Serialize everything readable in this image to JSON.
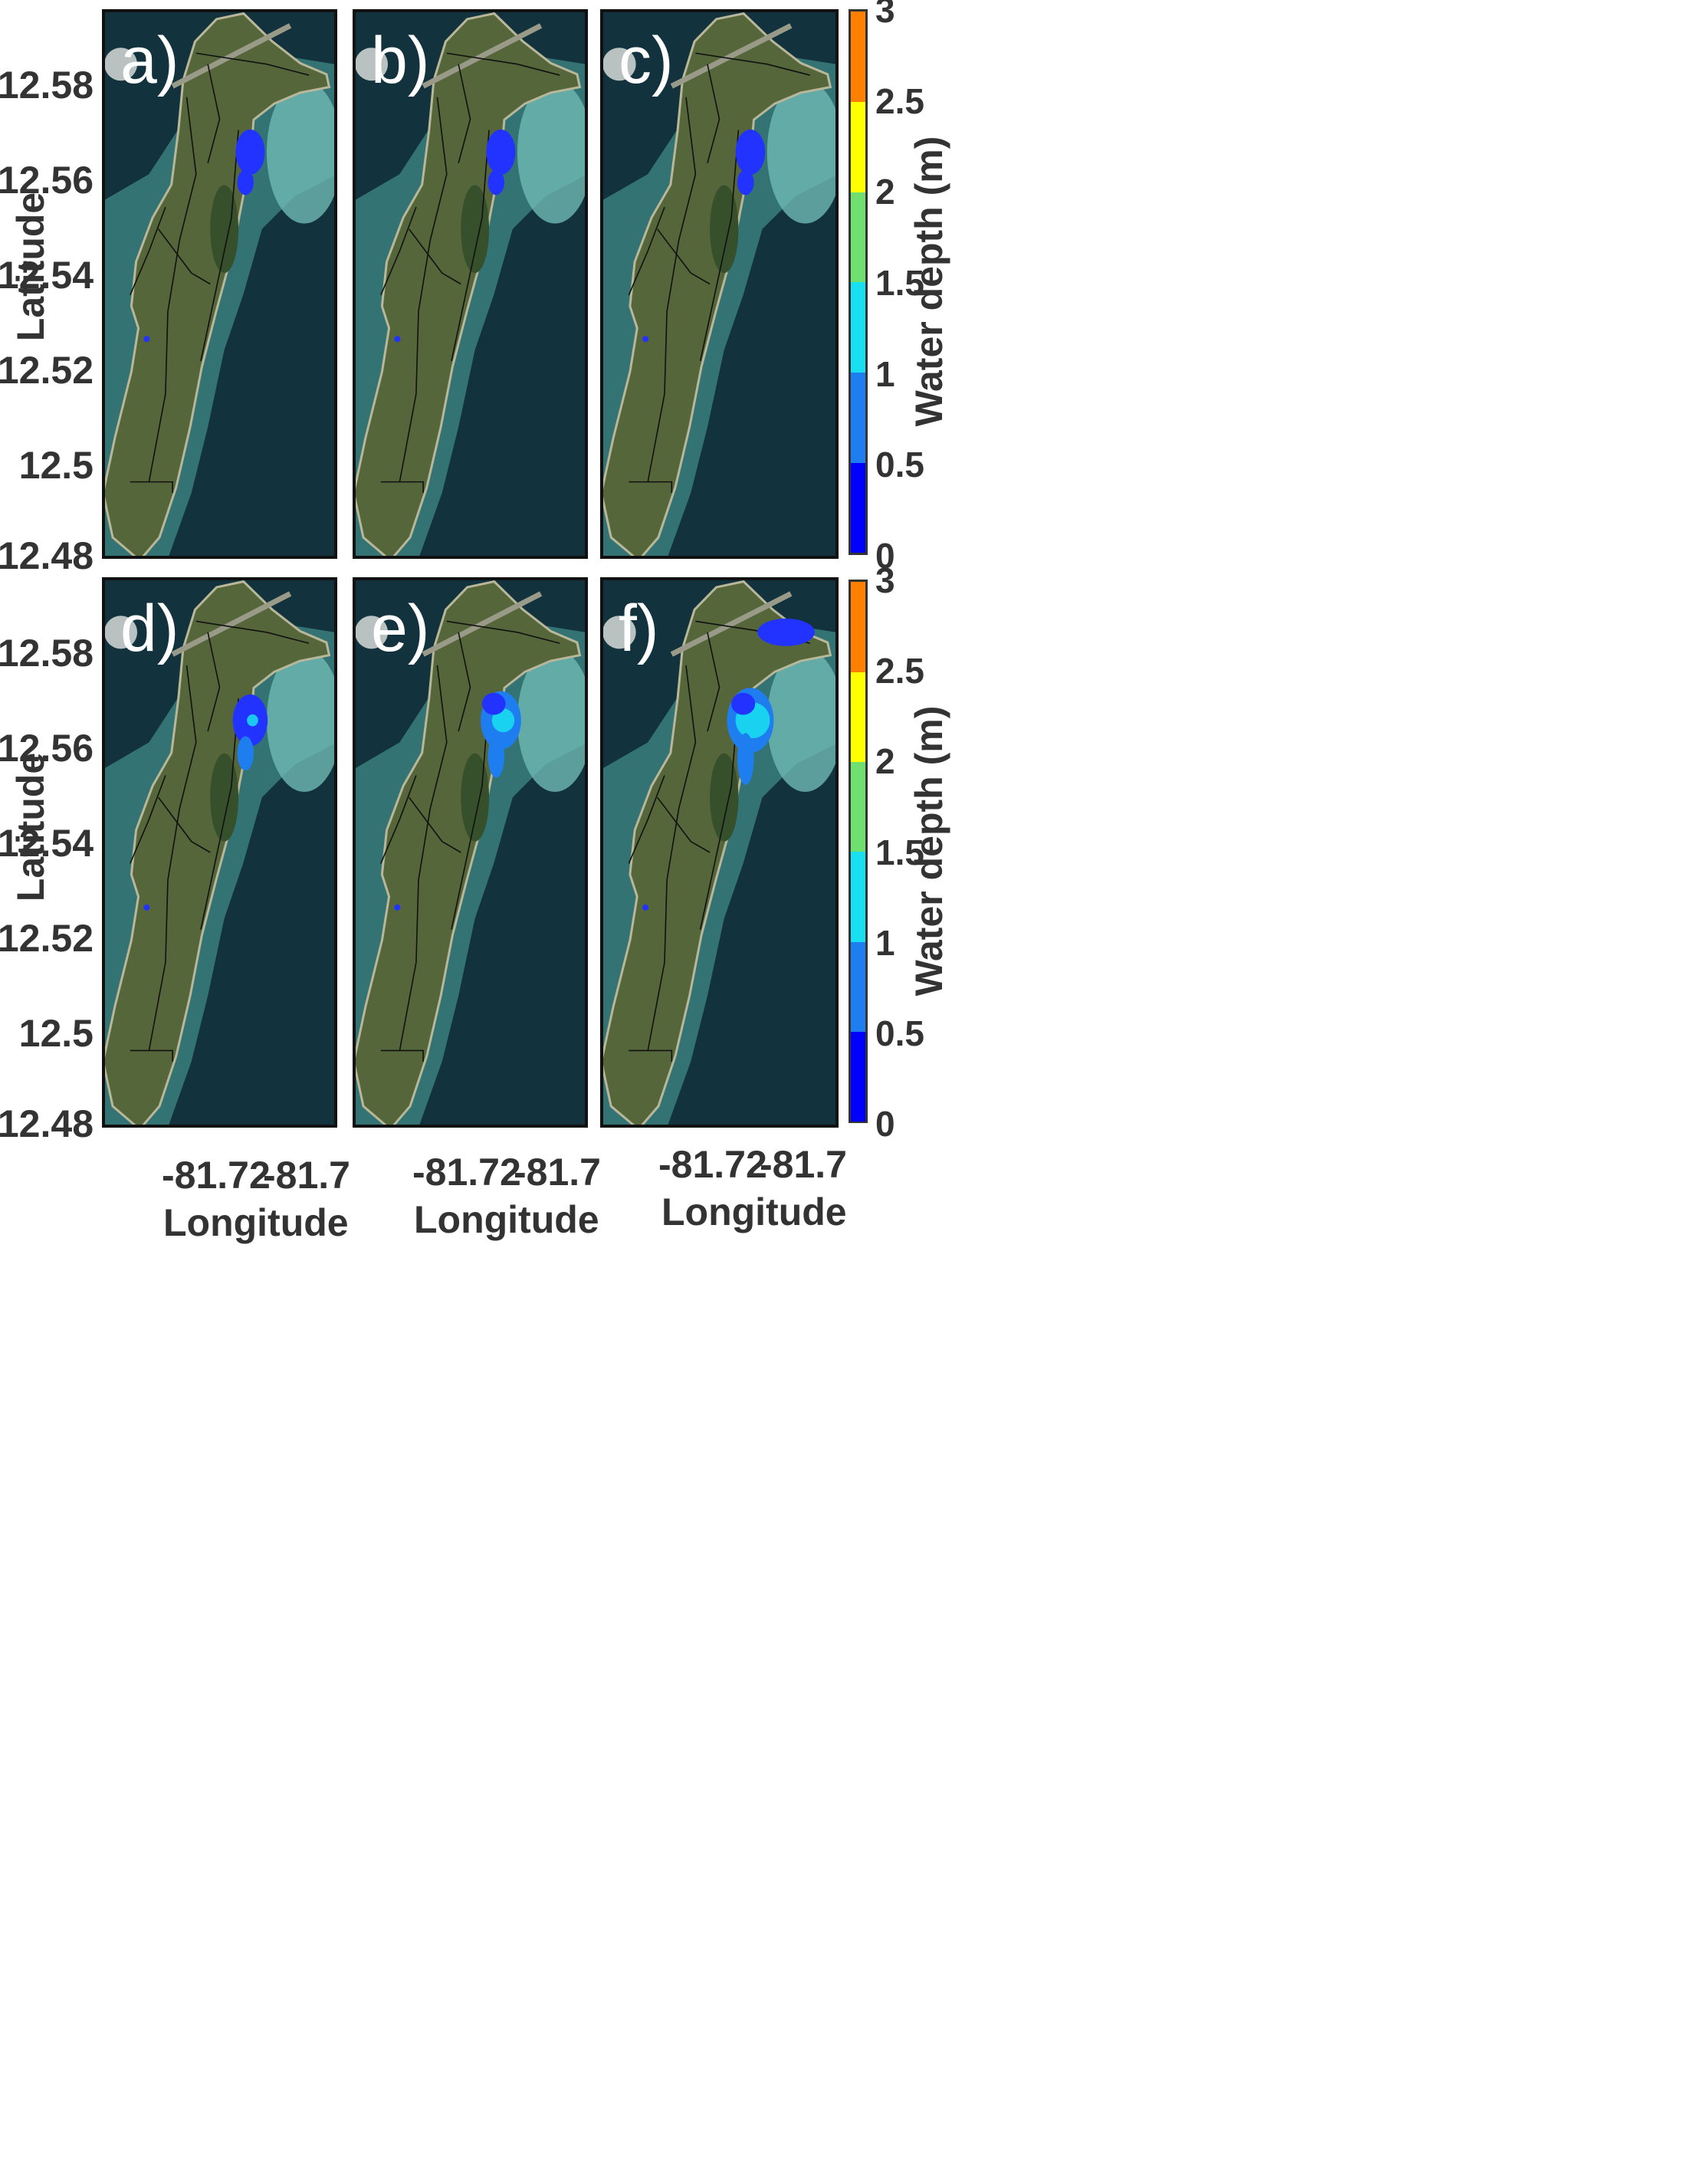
{
  "panels": [
    {
      "label": "a)",
      "flood_level": 1
    },
    {
      "label": "b)",
      "flood_level": 1
    },
    {
      "label": "c)",
      "flood_level": 1
    },
    {
      "label": "d)",
      "flood_level": 2
    },
    {
      "label": "e)",
      "flood_level": 3
    },
    {
      "label": "f)",
      "flood_level": 4
    }
  ],
  "axes": {
    "y_label": "Latitude",
    "x_label": "Longitude",
    "y_ticks": [
      "12.58",
      "12.56",
      "12.54",
      "12.52",
      "12.5",
      "12.48"
    ],
    "x_ticks": [
      "-81.72",
      "-81.7"
    ]
  },
  "colorbar": {
    "label": "Water depth (m)",
    "ticks": [
      "3",
      "2.5",
      "2",
      "1.5",
      "1",
      "0.5",
      "0"
    ],
    "colors": [
      "#0000ff",
      "#1e7ef0",
      "#19e0f0",
      "#6fe070",
      "#ffff00",
      "#ff8000"
    ]
  },
  "colors": {
    "ocean_deep": "#12323d",
    "reef": "#3f8a86",
    "land": "#55663a",
    "flood_shallow": "#2233ff",
    "flood_mid": "#1e7ef0",
    "flood_deep": "#19e0f0"
  }
}
